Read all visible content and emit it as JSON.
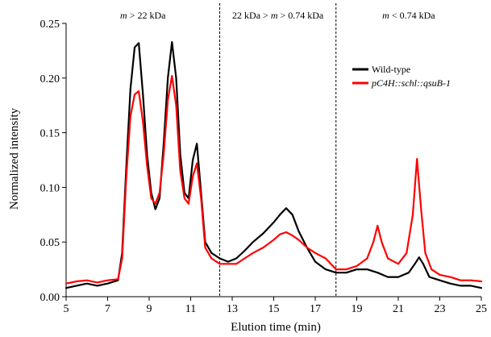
{
  "chart_data": {
    "type": "line",
    "xlabel": "Elution time (min)",
    "ylabel": "Normalized intensity",
    "xlim": [
      5,
      25
    ],
    "ylim": [
      0,
      0.25
    ],
    "x_ticks": [
      "5",
      "7",
      "9",
      "11",
      "13",
      "15",
      "17",
      "19",
      "21",
      "23",
      "25"
    ],
    "y_ticks": [
      "0.00",
      "0.05",
      "0.10",
      "0.15",
      "0.20",
      "0.25"
    ],
    "grid": false,
    "legend_position": "top-right",
    "region_dividers": [
      12.4,
      18.0
    ],
    "regions": [
      {
        "italic": "m",
        "label": " > 22 kDa",
        "x_center": 8.7
      },
      {
        "label": "22 kDa > ",
        "italic": "m",
        "label_after": " > 0.74 kDa",
        "x_center": 15.2
      },
      {
        "italic": "m",
        "label": " < 0.74 kDa",
        "x_center": 21.5
      }
    ],
    "series": [
      {
        "name": "Wild-type",
        "color": "#000000",
        "italic": false,
        "x": [
          5.0,
          5.5,
          6.0,
          6.5,
          7.0,
          7.5,
          7.7,
          7.9,
          8.1,
          8.3,
          8.5,
          8.7,
          8.9,
          9.1,
          9.3,
          9.5,
          9.7,
          9.9,
          10.1,
          10.3,
          10.5,
          10.7,
          10.9,
          11.1,
          11.3,
          11.5,
          11.7,
          12.0,
          12.4,
          12.8,
          13.2,
          13.6,
          14.0,
          14.5,
          15.0,
          15.3,
          15.6,
          15.9,
          16.2,
          16.6,
          17.0,
          17.5,
          18.0,
          18.5,
          19.0,
          19.5,
          20.0,
          20.5,
          21.0,
          21.5,
          21.8,
          22.0,
          22.2,
          22.5,
          23.0,
          23.5,
          24.0,
          24.5,
          25.0
        ],
        "values": [
          0.008,
          0.01,
          0.012,
          0.01,
          0.012,
          0.015,
          0.04,
          0.12,
          0.19,
          0.228,
          0.232,
          0.185,
          0.13,
          0.095,
          0.08,
          0.09,
          0.14,
          0.2,
          0.233,
          0.2,
          0.13,
          0.095,
          0.09,
          0.125,
          0.14,
          0.095,
          0.05,
          0.04,
          0.035,
          0.032,
          0.035,
          0.042,
          0.05,
          0.058,
          0.068,
          0.075,
          0.081,
          0.075,
          0.06,
          0.045,
          0.032,
          0.025,
          0.022,
          0.022,
          0.025,
          0.025,
          0.022,
          0.018,
          0.018,
          0.022,
          0.03,
          0.036,
          0.03,
          0.018,
          0.015,
          0.012,
          0.01,
          0.01,
          0.008
        ]
      },
      {
        "name": "pC4H::schl::qsuB-1",
        "color": "#ff0000",
        "italic": true,
        "x": [
          5.0,
          5.5,
          6.0,
          6.5,
          7.0,
          7.5,
          7.7,
          7.9,
          8.1,
          8.3,
          8.5,
          8.7,
          8.9,
          9.1,
          9.3,
          9.5,
          9.7,
          9.9,
          10.1,
          10.3,
          10.5,
          10.7,
          10.9,
          11.1,
          11.3,
          11.5,
          11.7,
          12.0,
          12.4,
          12.8,
          13.2,
          13.6,
          14.0,
          14.5,
          15.0,
          15.3,
          15.6,
          15.9,
          16.2,
          16.6,
          17.0,
          17.5,
          18.0,
          18.5,
          19.0,
          19.5,
          19.8,
          20.0,
          20.2,
          20.5,
          21.0,
          21.4,
          21.7,
          21.9,
          22.1,
          22.3,
          22.6,
          23.0,
          23.5,
          24.0,
          24.5,
          25.0
        ],
        "values": [
          0.012,
          0.014,
          0.015,
          0.013,
          0.015,
          0.016,
          0.035,
          0.11,
          0.165,
          0.185,
          0.188,
          0.16,
          0.12,
          0.09,
          0.085,
          0.095,
          0.13,
          0.18,
          0.202,
          0.175,
          0.115,
          0.09,
          0.085,
          0.11,
          0.122,
          0.09,
          0.045,
          0.035,
          0.03,
          0.03,
          0.03,
          0.035,
          0.04,
          0.045,
          0.052,
          0.057,
          0.059,
          0.056,
          0.052,
          0.045,
          0.04,
          0.035,
          0.025,
          0.025,
          0.028,
          0.035,
          0.05,
          0.065,
          0.05,
          0.035,
          0.03,
          0.04,
          0.075,
          0.126,
          0.08,
          0.04,
          0.025,
          0.02,
          0.018,
          0.015,
          0.015,
          0.014
        ]
      }
    ]
  }
}
